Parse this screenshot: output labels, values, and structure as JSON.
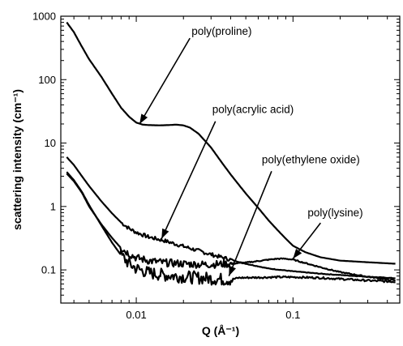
{
  "chart_data": {
    "type": "line",
    "xlabel": "Q (Å⁻¹)",
    "ylabel": "scattering intensity (cm⁻¹)",
    "xscale": "log",
    "yscale": "log",
    "xlim": [
      0.0033,
      0.48
    ],
    "ylim": [
      0.03,
      1000
    ],
    "grid": false,
    "legend": "none",
    "line_color": "#000000",
    "x_ticks": [
      {
        "value": 0.01,
        "label": "0.01"
      },
      {
        "value": 0.1,
        "label": "0.1"
      }
    ],
    "y_ticks": [
      {
        "value": 0.1,
        "label": "0.1"
      },
      {
        "value": 1,
        "label": "1"
      },
      {
        "value": 10,
        "label": "10"
      },
      {
        "value": 100,
        "label": "100"
      },
      {
        "value": 1000,
        "label": "1000"
      }
    ],
    "series": [
      {
        "name": "poly(proline)",
        "noise": 0,
        "x": [
          0.0036,
          0.004,
          0.0045,
          0.005,
          0.006,
          0.007,
          0.008,
          0.009,
          0.01,
          0.011,
          0.012,
          0.014,
          0.016,
          0.018,
          0.02,
          0.022,
          0.025,
          0.03,
          0.035,
          0.04,
          0.05,
          0.06,
          0.07,
          0.08,
          0.09,
          0.1,
          0.12,
          0.15,
          0.2,
          0.3,
          0.45
        ],
        "y": [
          800,
          560,
          330,
          210,
          110,
          60,
          36,
          26,
          21,
          19.5,
          19.2,
          19,
          19.2,
          19.5,
          19,
          17.5,
          14,
          8.5,
          5,
          3.2,
          1.6,
          0.95,
          0.6,
          0.42,
          0.31,
          0.24,
          0.19,
          0.158,
          0.14,
          0.132,
          0.125
        ]
      },
      {
        "name": "poly(acrylic acid)",
        "noise": 0.06,
        "x": [
          0.0036,
          0.004,
          0.0045,
          0.005,
          0.006,
          0.007,
          0.008,
          0.009,
          0.01,
          0.012,
          0.015,
          0.02,
          0.025,
          0.03,
          0.04,
          0.05,
          0.07,
          0.1,
          0.15,
          0.2,
          0.3,
          0.45
        ],
        "y": [
          6,
          4.5,
          3,
          2.1,
          1.2,
          0.78,
          0.56,
          0.45,
          0.39,
          0.33,
          0.29,
          0.235,
          0.2,
          0.175,
          0.145,
          0.125,
          0.105,
          0.095,
          0.087,
          0.083,
          0.078,
          0.074
        ]
      },
      {
        "name": "poly(ethylene oxide)",
        "noise": 0.2,
        "x": [
          0.0036,
          0.004,
          0.0045,
          0.005,
          0.006,
          0.007,
          0.008,
          0.009,
          0.01,
          0.012,
          0.015,
          0.02,
          0.025,
          0.03,
          0.035,
          0.04,
          0.045,
          0.06,
          0.08,
          0.1,
          0.15,
          0.2,
          0.3,
          0.45
        ],
        "y": [
          3.5,
          2.6,
          1.7,
          1.05,
          0.5,
          0.27,
          0.17,
          0.125,
          0.105,
          0.09,
          0.083,
          0.078,
          0.075,
          0.073,
          0.071,
          0.07,
          0.075,
          0.076,
          0.077,
          0.077,
          0.075,
          0.072,
          0.068,
          0.065
        ]
      },
      {
        "name": "poly(lysine)",
        "noise": 0.12,
        "x": [
          0.0036,
          0.004,
          0.0045,
          0.005,
          0.006,
          0.007,
          0.008,
          0.009,
          0.01,
          0.012,
          0.015,
          0.02,
          0.025,
          0.03,
          0.04,
          0.05,
          0.06,
          0.07,
          0.08,
          0.09,
          0.1,
          0.12,
          0.15,
          0.2,
          0.3,
          0.45
        ],
        "y": [
          3.3,
          2.5,
          1.65,
          1.0,
          0.52,
          0.32,
          0.22,
          0.18,
          0.155,
          0.14,
          0.13,
          0.125,
          0.122,
          0.122,
          0.125,
          0.13,
          0.138,
          0.145,
          0.15,
          0.15,
          0.145,
          0.128,
          0.11,
          0.092,
          0.078,
          0.068
        ]
      }
    ],
    "annotations": [
      {
        "text": "poly(proline)",
        "arrow_from": [
          0.022,
          450
        ],
        "arrow_to": [
          0.0105,
          20
        ]
      },
      {
        "text": "poly(acrylic acid)",
        "arrow_from": [
          0.032,
          22
        ],
        "arrow_to": [
          0.0145,
          0.31
        ]
      },
      {
        "text": "poly(ethylene oxide)",
        "arrow_from": [
          0.073,
          3.6
        ],
        "arrow_to": [
          0.039,
          0.08
        ]
      },
      {
        "text": "poly(lysine)",
        "arrow_from": [
          0.15,
          0.55
        ],
        "arrow_to": [
          0.1,
          0.15
        ]
      }
    ]
  }
}
